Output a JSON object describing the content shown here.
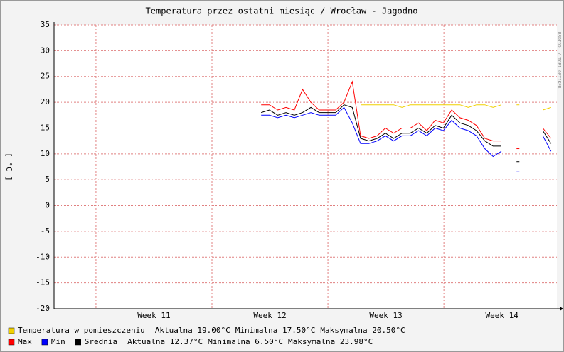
{
  "chart_data": {
    "type": "line",
    "title": "Temperatura przez ostatni miesiąc / Wrocław - Jagodno",
    "ylabel": "[ °C ]",
    "credit": "RRDTOOL / TOBI OETIKER",
    "x": [
      12.5,
      13,
      13.5,
      14,
      14.5,
      15,
      15.5,
      16,
      16.5,
      17,
      17.5,
      18,
      18.5,
      19,
      19.5,
      20,
      20.5,
      21,
      21.5,
      22,
      22.5,
      23,
      23.5,
      24,
      24.5,
      25,
      25.5,
      26,
      26.5,
      27,
      27.5,
      28,
      28.5,
      29,
      29.5,
      30
    ],
    "xlim": [
      0,
      30.35
    ],
    "xticks": [
      {
        "value": 6.03,
        "label": "Week 11"
      },
      {
        "value": 13.03,
        "label": "Week 12"
      },
      {
        "value": 20.03,
        "label": "Week 13"
      },
      {
        "value": 27.03,
        "label": "Week 14"
      }
    ],
    "xgrid": [
      2.53,
      9.53,
      16.53,
      23.53
    ],
    "ylim": [
      -20,
      35
    ],
    "yticks": [
      -20,
      -15,
      -10,
      -5,
      0,
      5,
      10,
      15,
      20,
      25,
      30,
      35
    ],
    "grid": true,
    "series": [
      {
        "name": "Temperatura w pomieszczeniu",
        "color": "#f0d000",
        "values": [
          null,
          null,
          null,
          null,
          null,
          null,
          null,
          null,
          null,
          null,
          null,
          null,
          19.5,
          19.5,
          19.5,
          19.5,
          19.5,
          19,
          19.5,
          19.5,
          19.5,
          19.5,
          19.5,
          19.5,
          19.5,
          19,
          19.5,
          19.5,
          19,
          19.5,
          null,
          19.5,
          null,
          null,
          18.5,
          19
        ],
        "stats": [
          "Aktualna 19.00°C",
          "Minimalna 17.50°C",
          "Maksymalna 20.50°C"
        ]
      },
      {
        "name": "Max",
        "color": "#ff0000",
        "values": [
          19.5,
          19.5,
          18.5,
          19,
          18.5,
          22.5,
          20,
          18.5,
          18.5,
          18.5,
          20,
          23.98,
          13.5,
          13,
          13.5,
          15,
          14,
          15,
          15,
          16,
          14.5,
          16.5,
          16,
          18.5,
          17,
          16.5,
          15.5,
          13,
          12.5,
          12.5,
          null,
          11,
          null,
          null,
          15,
          13
        ]
      },
      {
        "name": "Min",
        "color": "#0000ff",
        "values": [
          17.5,
          17.5,
          17,
          17.5,
          17,
          17.5,
          18,
          17.5,
          17.5,
          17.5,
          19,
          16,
          12,
          12,
          12.5,
          13.5,
          12.5,
          13.5,
          13.5,
          14.5,
          13.5,
          15,
          14.5,
          16.5,
          15,
          14.5,
          13.5,
          11,
          9.5,
          10.5,
          null,
          6.5,
          null,
          null,
          13.5,
          10.5
        ]
      },
      {
        "name": "Srednia",
        "color": "#000000",
        "values": [
          18,
          18.5,
          17.5,
          18,
          17.5,
          18,
          19,
          18,
          18,
          18,
          19.5,
          19,
          13,
          12.5,
          13,
          14,
          13,
          14,
          14,
          15,
          14,
          15.5,
          15,
          17.5,
          16,
          15.5,
          14.5,
          12.5,
          11.5,
          11.5,
          null,
          8.5,
          null,
          null,
          14.5,
          12
        ],
        "stats": [
          "Aktualna 12.37°C",
          "Minimalna 6.50°C",
          "Maksymalna 23.98°C"
        ]
      }
    ]
  }
}
